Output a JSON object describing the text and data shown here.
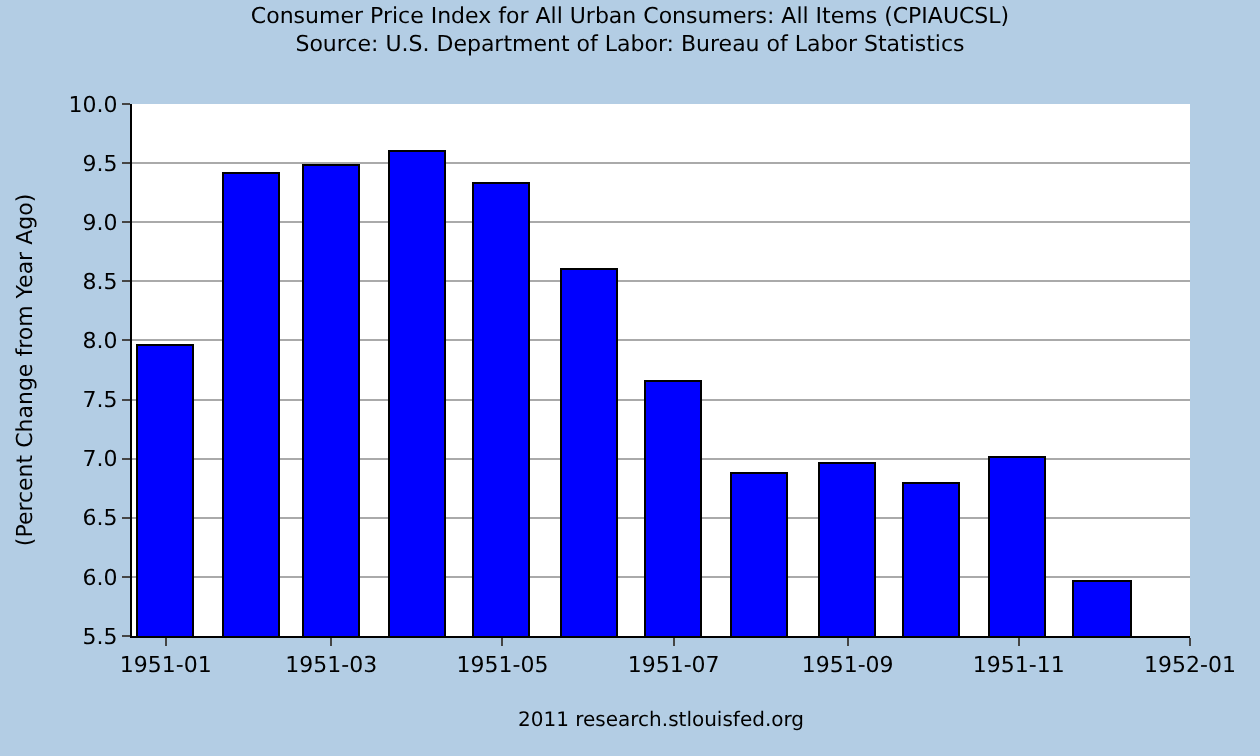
{
  "chart_data": {
    "type": "bar",
    "title": "Consumer Price Index for All Urban Consumers: All Items (CPIAUCSL)",
    "subtitle": "Source: U.S. Department of Labor: Bureau of Labor Statistics",
    "ylabel": "(Percent Change from Year Ago)",
    "x": [
      "1951-01",
      "1951-02",
      "1951-03",
      "1951-04",
      "1951-05",
      "1951-06",
      "1951-07",
      "1951-08",
      "1951-09",
      "1951-10",
      "1951-11",
      "1951-12"
    ],
    "values": [
      7.95,
      9.4,
      9.47,
      9.6,
      9.33,
      8.59,
      7.65,
      6.87,
      6.96,
      6.79,
      7.0,
      5.96
    ],
    "color": "#0000ff",
    "xlim": [
      "1950-12-20",
      "1952-01"
    ],
    "xticks": [
      "1951-01",
      "1951-03",
      "1951-05",
      "1951-07",
      "1951-09",
      "1951-11",
      "1952-01"
    ],
    "ylim": [
      5.5,
      10.0
    ],
    "yticks": [
      {
        "value": 5.5,
        "label": "5.5"
      },
      {
        "value": 6.0,
        "label": "6.0"
      },
      {
        "value": 6.5,
        "label": "6.5"
      },
      {
        "value": 7.0,
        "label": "7.0"
      },
      {
        "value": 7.5,
        "label": "7.5"
      },
      {
        "value": 8.0,
        "label": "8.0"
      },
      {
        "value": 8.5,
        "label": "8.5"
      },
      {
        "value": 9.0,
        "label": "9.0"
      },
      {
        "value": 9.5,
        "label": "9.5"
      },
      {
        "value": 10.0,
        "label": "10.0"
      }
    ],
    "grid": "y",
    "legend": false,
    "annotations": [
      "2011 research.stlouisfed.org"
    ]
  }
}
